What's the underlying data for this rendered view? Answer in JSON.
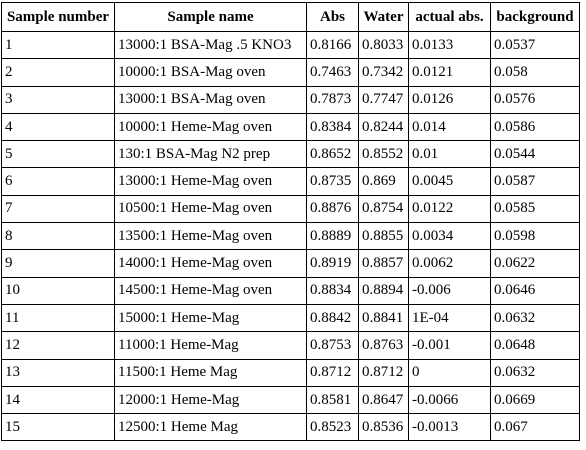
{
  "table": {
    "headers": [
      "Sample number",
      "Sample name",
      "Abs",
      "Water",
      "actual abs.",
      "background"
    ],
    "rows": [
      [
        "1",
        "13000:1 BSA-Mag .5 KNO3",
        "0.8166",
        "0.8033",
        "0.0133",
        "0.0537"
      ],
      [
        "2",
        "10000:1 BSA-Mag oven",
        "0.7463",
        "0.7342",
        "0.0121",
        "0.058"
      ],
      [
        "3",
        "13000:1 BSA-Mag oven",
        "0.7873",
        "0.7747",
        "0.0126",
        "0.0576"
      ],
      [
        "4",
        "10000:1 Heme-Mag oven",
        "0.8384",
        "0.8244",
        "0.014",
        "0.0586"
      ],
      [
        "5",
        "130:1 BSA-Mag N2 prep",
        "0.8652",
        "0.8552",
        "0.01",
        "0.0544"
      ],
      [
        "6",
        "13000:1 Heme-Mag oven",
        "0.8735",
        "0.869",
        "0.0045",
        "0.0587"
      ],
      [
        "7",
        "10500:1 Heme-Mag oven",
        "0.8876",
        "0.8754",
        "0.0122",
        "0.0585"
      ],
      [
        "8",
        "13500:1 Heme-Mag oven",
        "0.8889",
        "0.8855",
        "0.0034",
        "0.0598"
      ],
      [
        "9",
        "14000:1 Heme-Mag oven",
        "0.8919",
        "0.8857",
        "0.0062",
        "0.0622"
      ],
      [
        "10",
        "14500:1 Heme-Mag oven",
        "0.8834",
        "0.8894",
        "-0.006",
        "0.0646"
      ],
      [
        "11",
        "15000:1 Heme-Mag",
        "0.8842",
        "0.8841",
        "1E-04",
        "0.0632"
      ],
      [
        "12",
        "11000:1 Heme-Mag",
        "0.8753",
        "0.8763",
        "-0.001",
        "0.0648"
      ],
      [
        "13",
        "11500:1 Heme Mag",
        "0.8712",
        "0.8712",
        "0",
        "0.0632"
      ],
      [
        "14",
        "12000:1 Heme-Mag",
        "0.8581",
        "0.8647",
        "-0.0066",
        "0.0669"
      ],
      [
        "15",
        "12500:1 Heme Mag",
        "0.8523",
        "0.8536",
        "-0.0013",
        "0.067"
      ]
    ]
  }
}
